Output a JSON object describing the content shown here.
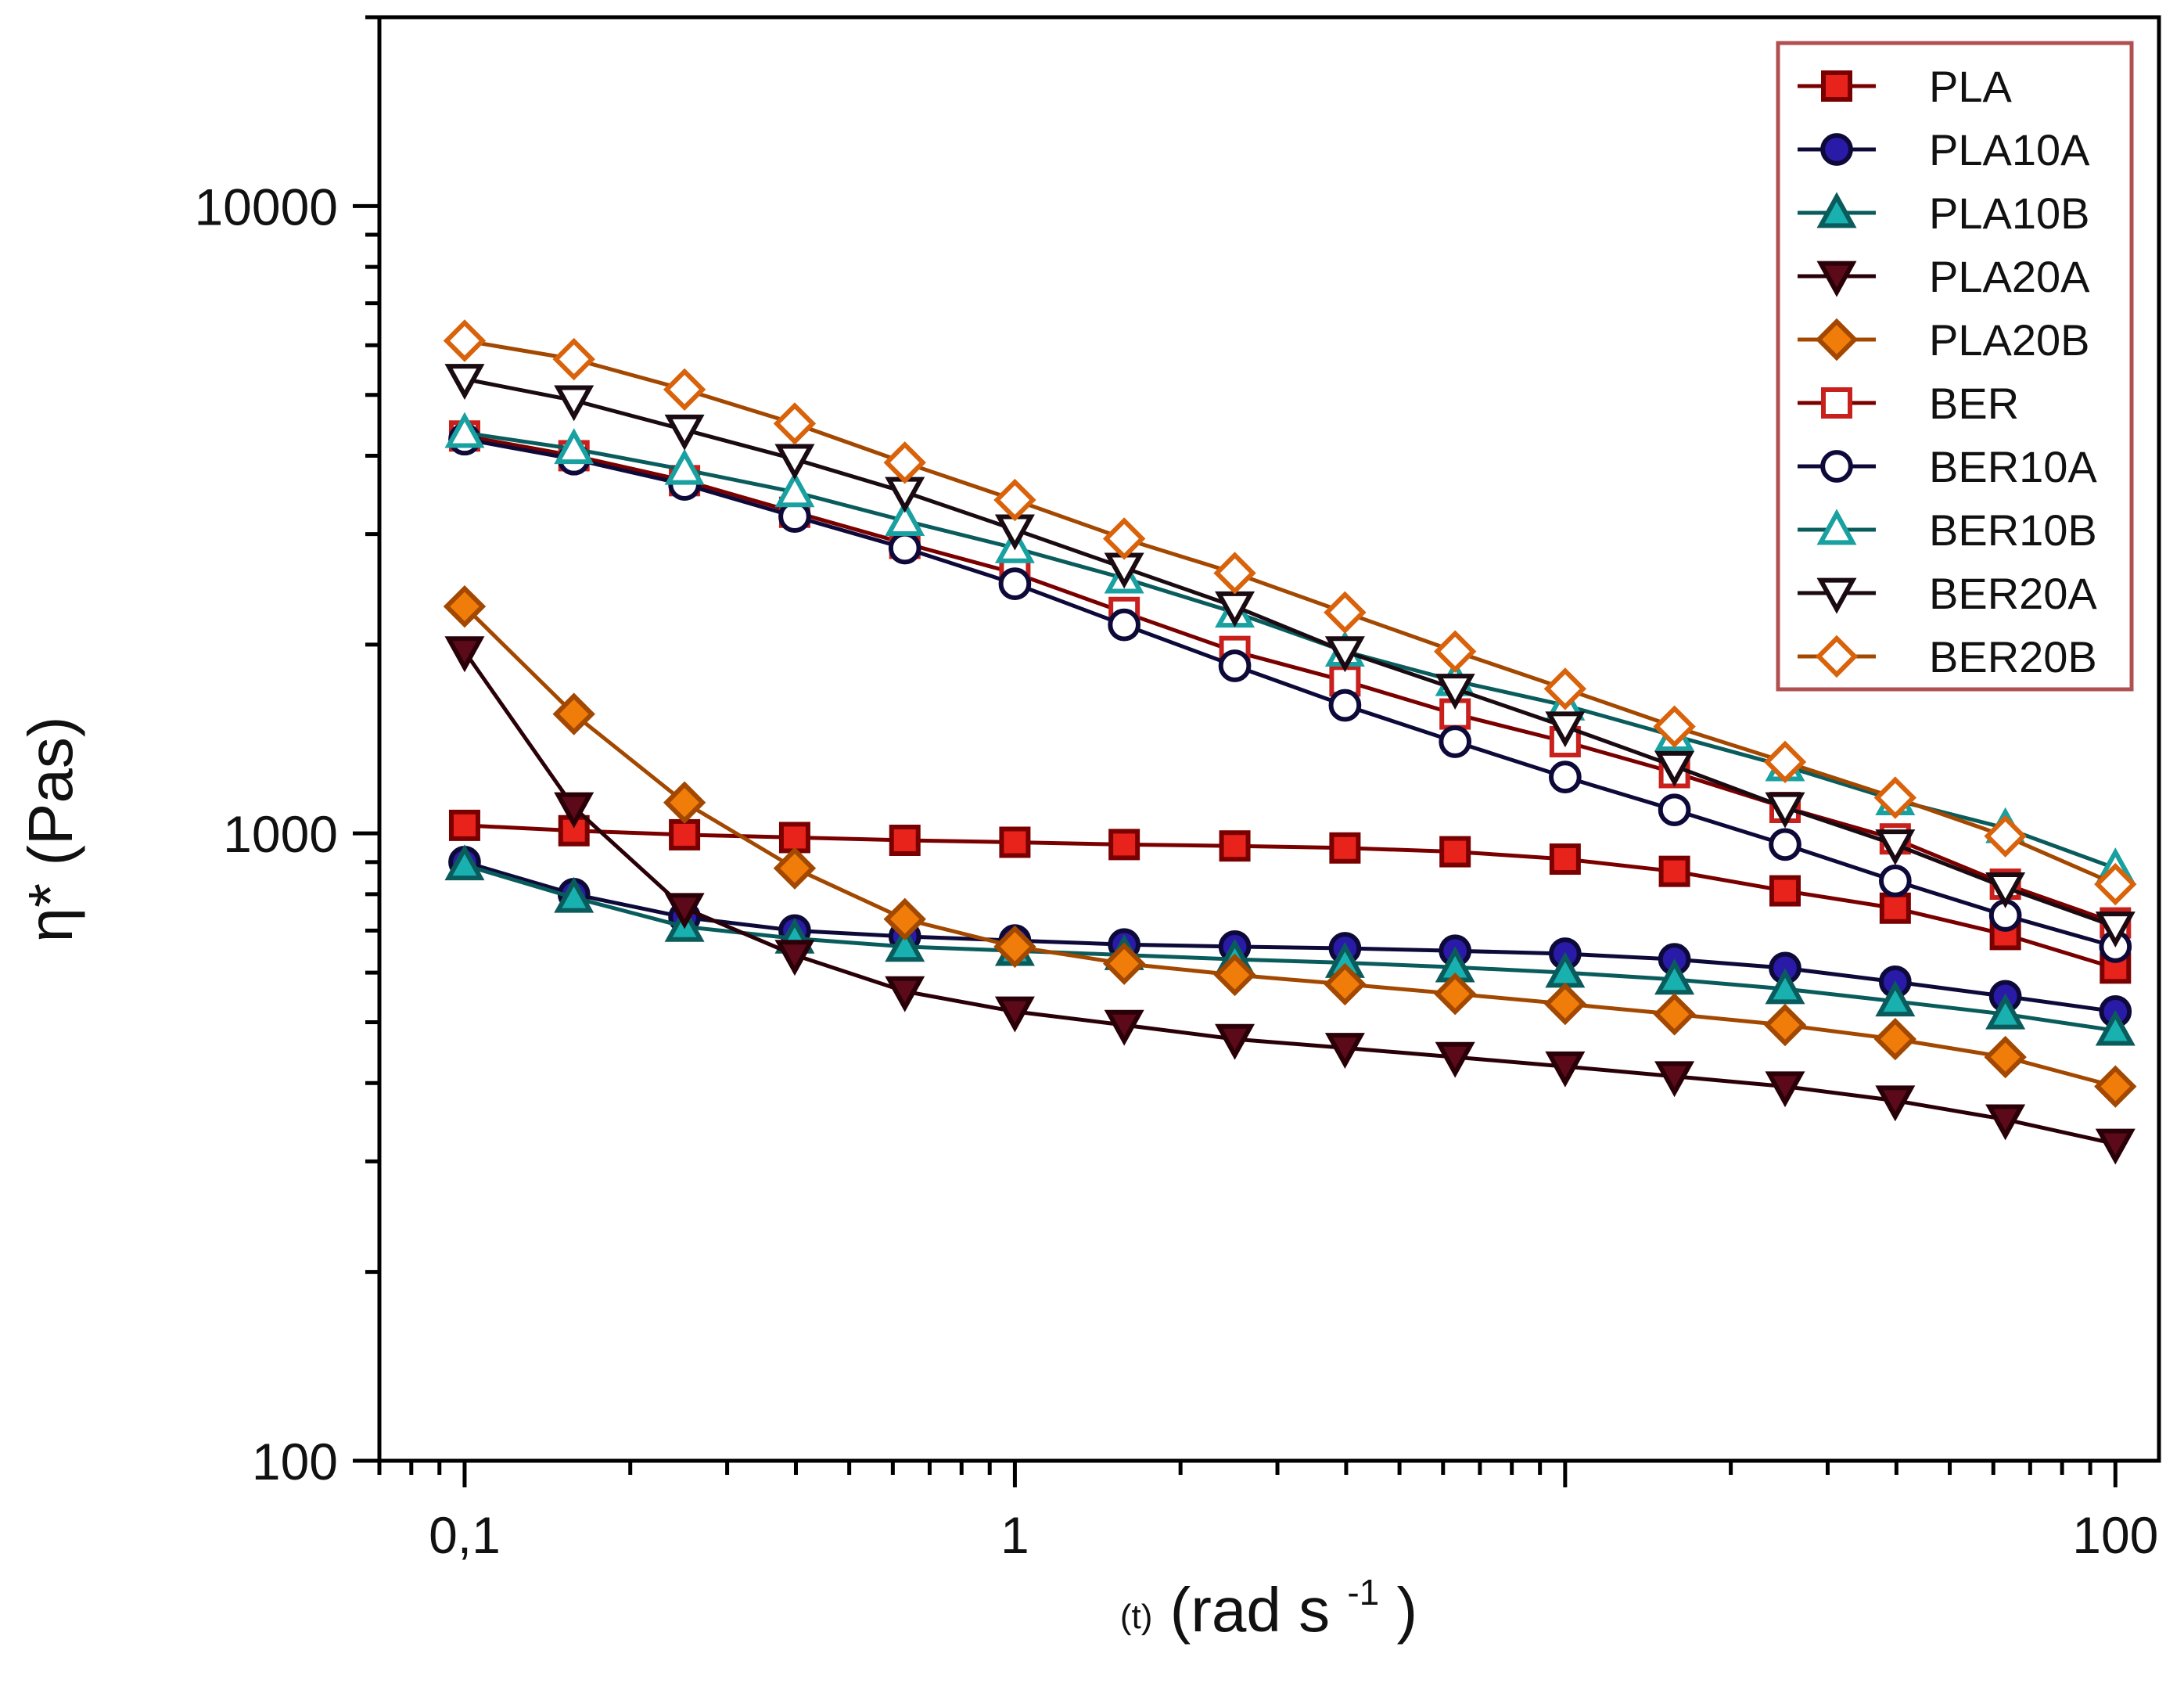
{
  "chart_data": {
    "type": "line",
    "title": "",
    "xlabel": "(t) (rad s-1)",
    "ylabel": "η* (Pas)",
    "xscale": "log",
    "yscale": "log",
    "xlim": [
      0.07,
      120
    ],
    "ylim": [
      100,
      20000
    ],
    "x_ticks": [
      {
        "value": 0.1,
        "label": "0,1"
      },
      {
        "value": 1,
        "label": "1"
      },
      {
        "value": 100,
        "label": "100"
      }
    ],
    "y_ticks": [
      {
        "value": 100,
        "label": "100"
      },
      {
        "value": 1000,
        "label": "1000"
      },
      {
        "value": 10000,
        "label": "10000"
      }
    ],
    "x_title_parts": {
      "prefix": "(t)",
      "main": " (rad s",
      "sup": "-1",
      "suffix": ")"
    },
    "y_title": "η* (Pas)",
    "legend_position": "top-right",
    "x": [
      0.1,
      0.158,
      0.251,
      0.398,
      0.631,
      1,
      1.58,
      2.51,
      3.98,
      6.31,
      10,
      15.8,
      25.1,
      39.8,
      63.1,
      100
    ],
    "series": [
      {
        "name": "PLA",
        "marker": "square",
        "filled": true,
        "color": "#e8231c",
        "line_color": "#7a0000",
        "values": [
          1030,
          1010,
          995,
          985,
          975,
          968,
          960,
          955,
          948,
          935,
          910,
          870,
          810,
          760,
          690,
          610
        ]
      },
      {
        "name": "PLA10A",
        "marker": "circle",
        "filled": true,
        "color": "#2a1aa8",
        "line_color": "#0d0a3a",
        "values": [
          900,
          800,
          735,
          700,
          685,
          675,
          665,
          660,
          656,
          650,
          643,
          630,
          610,
          580,
          550,
          520
        ]
      },
      {
        "name": "PLA10B",
        "marker": "triangle-up",
        "filled": true,
        "color": "#19b0b0",
        "line_color": "#0a5c5c",
        "values": [
          890,
          790,
          710,
          680,
          660,
          650,
          640,
          630,
          622,
          612,
          600,
          585,
          565,
          540,
          515,
          485
        ]
      },
      {
        "name": "PLA20A",
        "marker": "triangle-down",
        "filled": true,
        "color": "#5c0a1a",
        "line_color": "#2a0008",
        "values": [
          1950,
          1100,
          760,
          640,
          560,
          520,
          495,
          470,
          455,
          440,
          425,
          410,
          395,
          375,
          350,
          320
        ]
      },
      {
        "name": "PLA20B",
        "marker": "diamond",
        "filled": true,
        "color": "#f07c0a",
        "line_color": "#a34800",
        "values": [
          2300,
          1550,
          1120,
          880,
          730,
          660,
          620,
          595,
          575,
          555,
          535,
          515,
          495,
          470,
          440,
          395
        ]
      },
      {
        "name": "BER",
        "marker": "square",
        "filled": false,
        "color": "#c8201c",
        "line_color": "#7a0000",
        "values": [
          4300,
          4000,
          3650,
          3250,
          2900,
          2600,
          2250,
          1950,
          1750,
          1550,
          1400,
          1250,
          1100,
          980,
          830,
          720
        ]
      },
      {
        "name": "BER10A",
        "marker": "circle",
        "filled": false,
        "color": "#0d0a3a",
        "line_color": "#0d0a3a",
        "values": [
          4250,
          3950,
          3600,
          3200,
          2850,
          2500,
          2150,
          1850,
          1600,
          1400,
          1230,
          1090,
          960,
          840,
          740,
          660
        ]
      },
      {
        "name": "BER10B",
        "marker": "triangle-up",
        "filled": false,
        "color": "#19a0a0",
        "line_color": "#0a5c5c",
        "values": [
          4350,
          4100,
          3800,
          3500,
          3150,
          2850,
          2550,
          2250,
          1950,
          1750,
          1600,
          1430,
          1280,
          1130,
          1020,
          880
        ]
      },
      {
        "name": "BER20A",
        "marker": "triangle-down",
        "filled": false,
        "color": "#1a0a12",
        "line_color": "#1a0a12",
        "values": [
          5300,
          4900,
          4400,
          3950,
          3500,
          3050,
          2650,
          2300,
          1950,
          1700,
          1480,
          1280,
          1100,
          960,
          820,
          710
        ]
      },
      {
        "name": "BER20B",
        "marker": "diamond",
        "filled": false,
        "color": "#d9620a",
        "line_color": "#a34800",
        "values": [
          6100,
          5700,
          5100,
          4500,
          3900,
          3400,
          2950,
          2600,
          2250,
          1950,
          1700,
          1480,
          1300,
          1140,
          990,
          830
        ]
      }
    ]
  }
}
